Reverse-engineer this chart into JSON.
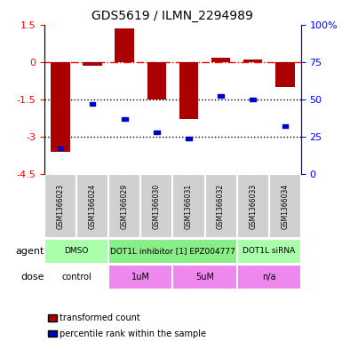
{
  "title": "GDS5619 / ILMN_2294989",
  "samples": [
    "GSM1366023",
    "GSM1366024",
    "GSM1366029",
    "GSM1366030",
    "GSM1366031",
    "GSM1366032",
    "GSM1366033",
    "GSM1366034"
  ],
  "red_values": [
    -3.6,
    -0.15,
    1.35,
    -1.5,
    -2.3,
    0.15,
    0.1,
    -1.0
  ],
  "blue_values": [
    17,
    47,
    37,
    28,
    24,
    52,
    50,
    32
  ],
  "ylim_left": [
    -4.5,
    1.5
  ],
  "ylim_right": [
    0,
    100
  ],
  "yticks_left": [
    -4.5,
    -3.0,
    -1.5,
    0.0,
    1.5
  ],
  "ytick_labels_left": [
    "-4.5",
    "-3",
    "-1.5",
    "0",
    "1.5"
  ],
  "yticks_right": [
    0,
    25,
    50,
    75,
    100
  ],
  "ytick_labels_right": [
    "0",
    "25",
    "50",
    "75",
    "100%"
  ],
  "hlines_dotted": [
    -1.5,
    -3.0
  ],
  "hline_dashed": 0.0,
  "bar_color": "#aa0000",
  "dot_color": "#0000cc",
  "bar_width": 0.6,
  "agent_row": [
    {
      "label": "DMSO",
      "start": 0,
      "end": 2,
      "color": "#aaffaa"
    },
    {
      "label": "DOT1L inhibitor [1] EPZ004777",
      "start": 2,
      "end": 6,
      "color": "#88ee88"
    },
    {
      "label": "DOT1L siRNA",
      "start": 6,
      "end": 8,
      "color": "#aaffaa"
    }
  ],
  "dose_row": [
    {
      "label": "control",
      "start": 0,
      "end": 2,
      "color": "#ffffff"
    },
    {
      "label": "1uM",
      "start": 2,
      "end": 4,
      "color": "#ee88ee"
    },
    {
      "label": "5uM",
      "start": 4,
      "end": 6,
      "color": "#ee88ee"
    },
    {
      "label": "n/a",
      "start": 6,
      "end": 8,
      "color": "#ee88ee"
    }
  ],
  "legend_items": [
    {
      "color": "#aa0000",
      "label": "transformed count"
    },
    {
      "color": "#0000cc",
      "label": "percentile rank within the sample"
    }
  ],
  "agent_label": "agent",
  "dose_label": "dose"
}
